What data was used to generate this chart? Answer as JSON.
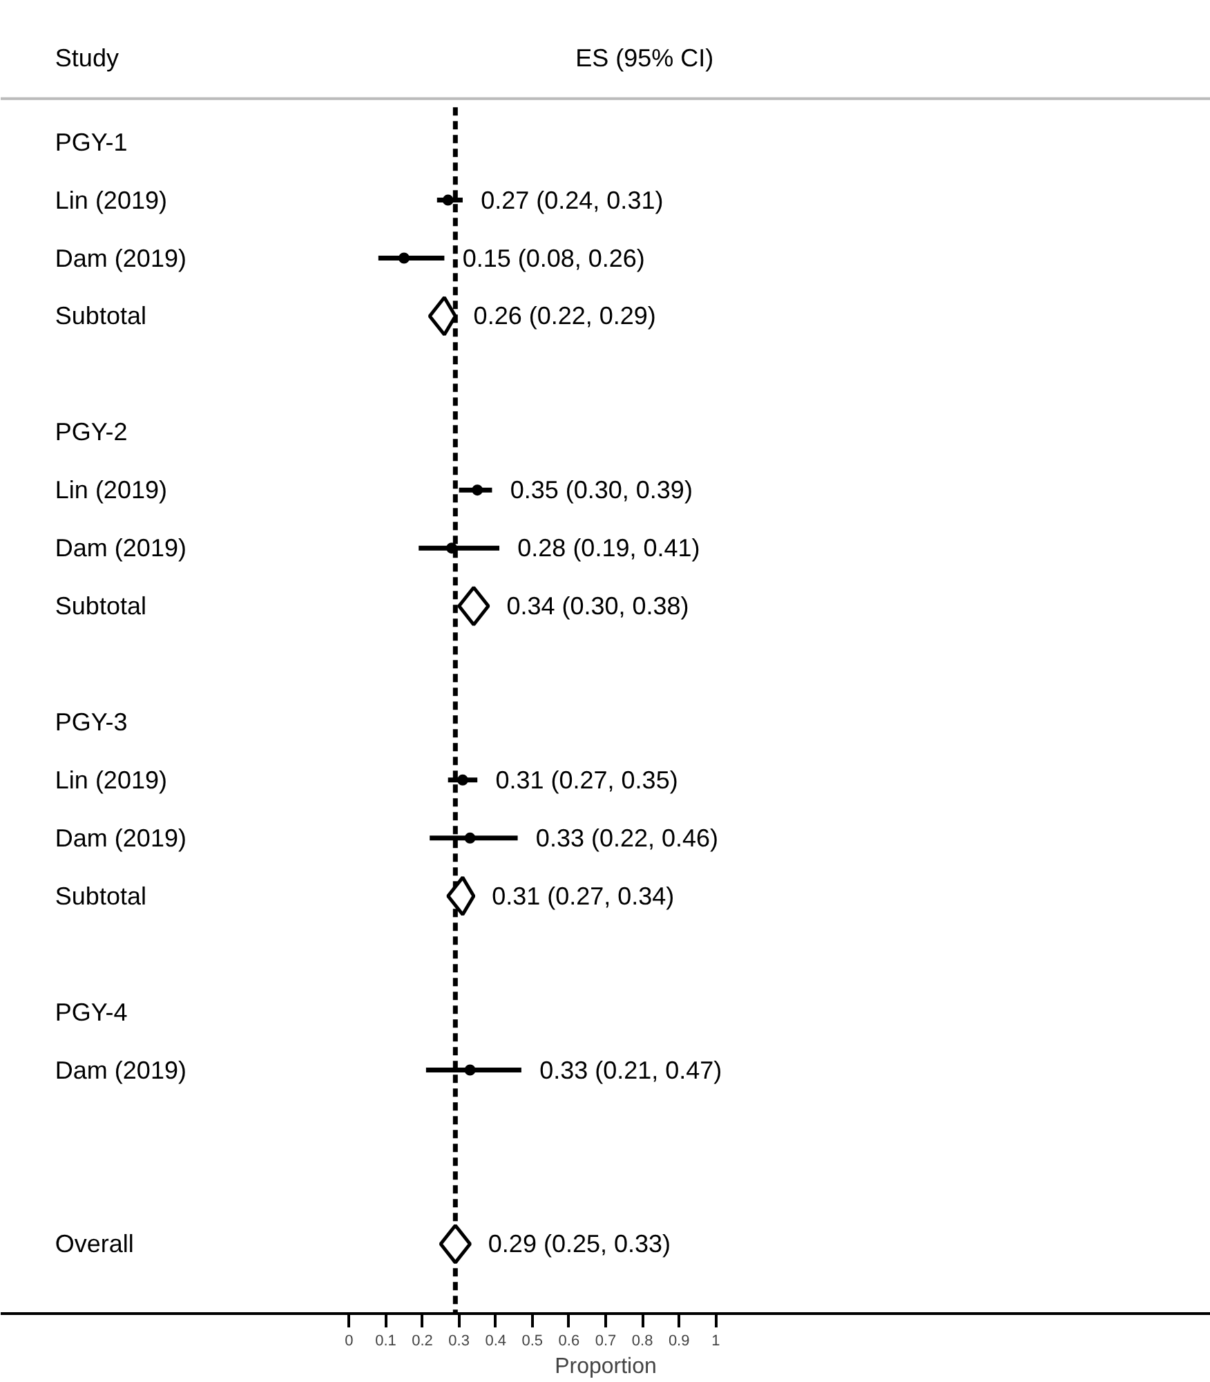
{
  "chart_data": {
    "type": "scatter",
    "orientation": "horizontal",
    "categories": [
      "PGY-1",
      "Lin (2019)",
      "Dam (2019)",
      "Subtotal",
      null,
      "PGY-2",
      "Lin (2019)",
      "Dam (2019)",
      "Subtotal",
      null,
      "PGY-3",
      "Lin (2019)",
      "Dam (2019)",
      "Subtotal",
      null,
      "PGY-4",
      "Dam (2019)",
      null,
      null,
      "Overall"
    ],
    "series": [
      {
        "marker": "circle",
        "color": "#000000",
        "values": [
          null,
          0.27,
          0.15,
          null,
          null,
          null,
          0.35,
          0.28,
          null,
          null,
          null,
          0.31,
          0.33,
          null,
          null,
          null,
          0.33,
          null,
          null,
          null
        ],
        "errors": [
          null,
          [
            0.24,
            0.31
          ],
          [
            0.08,
            0.26
          ],
          null,
          null,
          null,
          [
            0.3,
            0.39
          ],
          [
            0.19,
            0.41
          ],
          null,
          null,
          null,
          [
            0.27,
            0.35
          ],
          [
            0.22,
            0.46
          ],
          null,
          null,
          null,
          [
            0.21,
            0.47
          ],
          null,
          null,
          null
        ],
        "value_labels": [
          null,
          "0.27 (0.24, 0.31)",
          "0.15 (0.08, 0.26)",
          null,
          null,
          null,
          "0.35 (0.30, 0.39)",
          "0.28 (0.19, 0.41)",
          null,
          null,
          null,
          "0.31 (0.27, 0.35)",
          "0.33 (0.22, 0.46)",
          null,
          null,
          null,
          "0.33 (0.21, 0.47)",
          null,
          null,
          null
        ]
      },
      {
        "marker": "diamond",
        "color": "#000000",
        "values": [
          null,
          null,
          null,
          0.26,
          null,
          null,
          null,
          null,
          0.34,
          null,
          null,
          null,
          null,
          0.31,
          null,
          null,
          null,
          null,
          null,
          0.29
        ],
        "errors": [
          null,
          null,
          null,
          [
            0.22,
            0.29
          ],
          null,
          null,
          null,
          null,
          [
            0.3,
            0.38
          ],
          null,
          null,
          null,
          null,
          [
            0.27,
            0.34
          ],
          null,
          null,
          null,
          null,
          null,
          [
            0.25,
            0.33
          ]
        ],
        "value_labels": [
          null,
          null,
          null,
          "0.26 (0.22, 0.29)",
          null,
          null,
          null,
          null,
          "0.34 (0.30, 0.38)",
          null,
          null,
          null,
          null,
          "0.31 (0.27, 0.34)",
          null,
          null,
          null,
          null,
          null,
          "0.29 (0.25, 0.33)"
        ]
      }
    ],
    "xlim": [
      -0.95,
      2.35
    ],
    "xticks": [
      0,
      0.1,
      0.2,
      0.3,
      0.4,
      0.5,
      0.6,
      0.7,
      0.8,
      0.9,
      1
    ],
    "xlabel": "Proportion",
    "annotations": [
      "Study",
      "ES (95% CI)"
    ],
    "ref_lines": [
      {
        "axis": "x",
        "value": 0.29,
        "line_style": "dashed"
      }
    ]
  }
}
